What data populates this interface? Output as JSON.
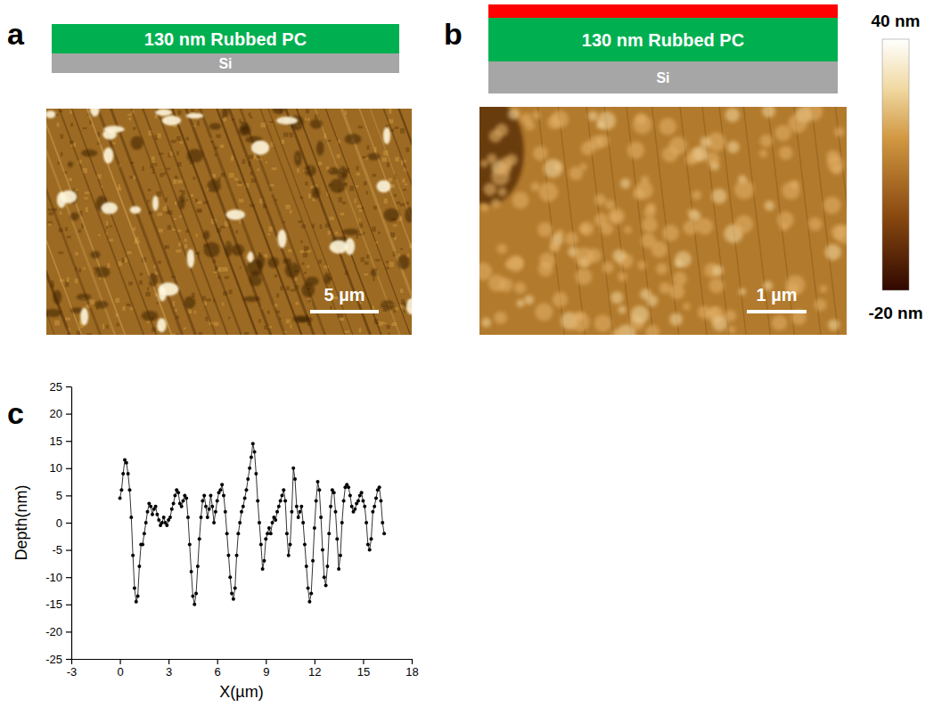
{
  "figure": {
    "panels": [
      {
        "label": "a",
        "layers": [
          {
            "text": "130 nm Rubbed PC",
            "color": "#00b050"
          },
          {
            "text": "Si",
            "color": "#a6a6a6"
          }
        ],
        "scale_bar": "5 µm"
      },
      {
        "label": "b",
        "layers": [
          {
            "color": "#ff0000"
          },
          {
            "text": "130 nm Rubbed PC",
            "color": "#00b050"
          },
          {
            "text": "Si",
            "color": "#a6a6a6"
          }
        ],
        "scale_bar": "1 µm"
      }
    ],
    "color_bar": {
      "range": [
        -20,
        40
      ],
      "ticks": [
        {
          "value": 40,
          "label": "40 nm"
        },
        {
          "value": -20,
          "label": "-20 nm"
        }
      ]
    }
  },
  "chart_data": {
    "type": "line",
    "panel_label": "c",
    "x_label": "X(µm)",
    "y_label": "Depth(nm)",
    "x": [
      0,
      0.1,
      0.2,
      0.3,
      0.4,
      0.5,
      0.6,
      0.7,
      0.8,
      0.9,
      1,
      1.1,
      1.2,
      1.3,
      1.4,
      1.5,
      1.6,
      1.7,
      1.8,
      1.9,
      2,
      2.1,
      2.2,
      2.3,
      2.4,
      2.5,
      2.6,
      2.7,
      2.8,
      2.9,
      3,
      3.1,
      3.2,
      3.3,
      3.4,
      3.5,
      3.6,
      3.7,
      3.8,
      3.9,
      4,
      4.1,
      4.2,
      4.3,
      4.4,
      4.5,
      4.6,
      4.7,
      4.8,
      4.9,
      5,
      5.1,
      5.2,
      5.3,
      5.4,
      5.5,
      5.6,
      5.7,
      5.8,
      5.9,
      6,
      6.1,
      6.2,
      6.3,
      6.4,
      6.5,
      6.6,
      6.7,
      6.8,
      6.9,
      7,
      7.1,
      7.2,
      7.3,
      7.4,
      7.5,
      7.6,
      7.7,
      7.8,
      7.9,
      8,
      8.1,
      8.2,
      8.3,
      8.4,
      8.5,
      8.6,
      8.7,
      8.8,
      8.9,
      9,
      9.1,
      9.2,
      9.3,
      9.4,
      9.5,
      9.6,
      9.7,
      9.8,
      9.9,
      10,
      10.1,
      10.2,
      10.3,
      10.4,
      10.5,
      10.6,
      10.7,
      10.8,
      10.9,
      11,
      11.1,
      11.2,
      11.3,
      11.4,
      11.5,
      11.6,
      11.7,
      11.8,
      11.9,
      12,
      12.1,
      12.2,
      12.3,
      12.4,
      12.5,
      12.6,
      12.7,
      12.8,
      12.9,
      13,
      13.1,
      13.2,
      13.3,
      13.4,
      13.5,
      13.6,
      13.7,
      13.8,
      13.9,
      14,
      14.1,
      14.2,
      14.3,
      14.4,
      14.5,
      14.6,
      14.7,
      14.8,
      14.9,
      15,
      15.1,
      15.2,
      15.3,
      15.4,
      15.5,
      15.6,
      15.7,
      15.8,
      15.9,
      16,
      16.1,
      16.2,
      16.3
    ],
    "values": [
      4.5,
      6,
      9,
      11.5,
      11,
      9,
      6,
      1,
      -6,
      -12,
      -14.5,
      -13.5,
      -8,
      -4,
      -4,
      -2,
      0,
      2,
      3.5,
      3,
      1.5,
      2.5,
      3,
      1.5,
      0.5,
      -0.5,
      0,
      1,
      0,
      -0.5,
      0.5,
      1,
      2.5,
      3.5,
      5,
      6,
      5.5,
      3.5,
      3,
      4,
      5,
      4.5,
      1,
      -4,
      -9,
      -13.5,
      -15,
      -13,
      -8,
      -3,
      1,
      4,
      5,
      3,
      1,
      2.5,
      5,
      3,
      0,
      2,
      4,
      5.5,
      6,
      7,
      5,
      2,
      -2,
      -6,
      -10,
      -13,
      -14,
      -12,
      -6,
      -2,
      0,
      2,
      3,
      4.5,
      6,
      8,
      10,
      12,
      14.5,
      13,
      9,
      4,
      0,
      -4,
      -8.5,
      -7,
      -3,
      -2,
      -1,
      -2,
      0,
      1,
      0.5,
      2,
      3,
      4,
      5,
      6,
      4,
      -2,
      -6,
      -4,
      2,
      10,
      8,
      3,
      1,
      2,
      3,
      0,
      -4,
      -8,
      -12,
      -14.5,
      -13,
      -7,
      -1,
      4,
      7.5,
      6,
      1,
      -5,
      -10,
      -11.5,
      -8,
      -2,
      3,
      6,
      5.5,
      2,
      -3,
      -8.5,
      -6,
      0,
      4,
      6.5,
      7,
      6.5,
      5,
      3,
      2,
      2.5,
      3.5,
      4,
      5,
      5.5,
      4,
      3,
      0,
      -4,
      -5,
      -3,
      2,
      3,
      4.5,
      6,
      6.5,
      4,
      0,
      -2
    ],
    "xlim": [
      -3,
      18
    ],
    "ylim": [
      -25,
      25
    ],
    "xticks": [
      -3,
      0,
      3,
      6,
      9,
      12,
      15,
      18
    ],
    "yticks": [
      -25,
      -20,
      -15,
      -10,
      -5,
      0,
      5,
      10,
      15,
      20,
      25
    ],
    "color": "#000000",
    "marker": "circle",
    "line_style": "solid"
  }
}
